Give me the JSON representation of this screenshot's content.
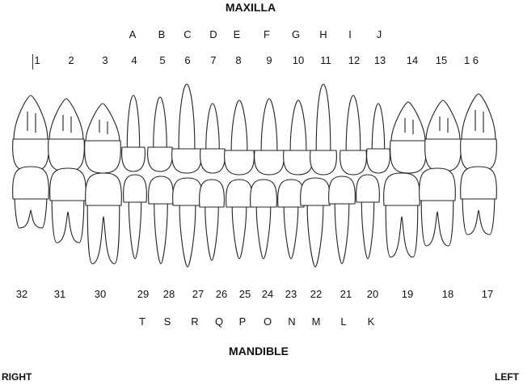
{
  "titles": {
    "top": "MAXILLA",
    "bottom": "MANDIBLE",
    "left": "RIGHT",
    "right": "LEFT"
  },
  "maxilla": {
    "letters": [
      "A",
      "B",
      "C",
      "D",
      "E",
      "F",
      "G",
      "H",
      "I",
      "J"
    ],
    "numbers": [
      "1",
      "2",
      "3",
      "4",
      "5",
      "6",
      "7",
      "8",
      "9",
      "10",
      "11",
      "12",
      "13",
      "14",
      "15",
      "1 6"
    ]
  },
  "mandible": {
    "numbers": [
      "32",
      "31",
      "30",
      "29",
      "28",
      "27",
      "26",
      "25",
      "24",
      "23",
      "22",
      "21",
      "20",
      "19",
      "18",
      "17"
    ],
    "letters": [
      "T",
      "S",
      "R",
      "Q",
      "P",
      "O",
      "N",
      "M",
      "L",
      "K"
    ]
  }
}
